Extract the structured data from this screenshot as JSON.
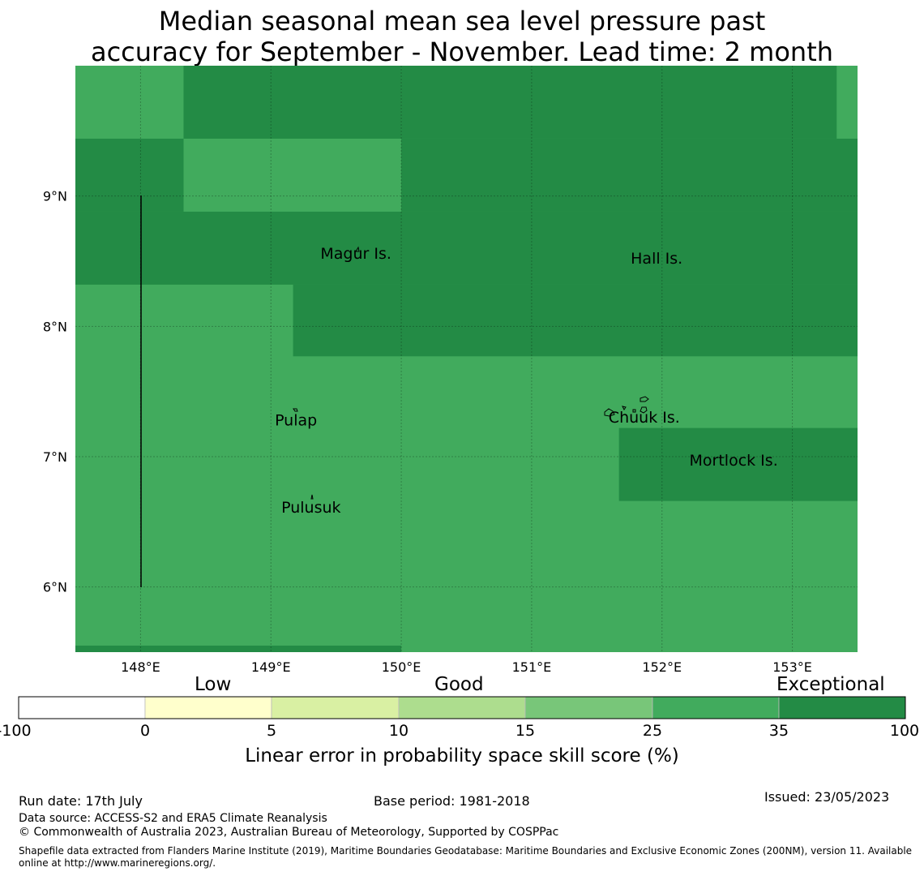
{
  "title": {
    "line1": "Median seasonal mean sea level pressure past",
    "line2": "accuracy for September - November. Lead time: 2 month"
  },
  "map": {
    "lon_range": [
      147.5,
      153.5
    ],
    "lat_range": [
      5.5,
      10.0
    ],
    "lon_ticks": [
      "148°E",
      "149°E",
      "150°E",
      "151°E",
      "152°E",
      "153°E"
    ],
    "lat_ticks": [
      "9°N",
      "8°N",
      "7°N",
      "6°N"
    ],
    "colors": {
      "good": "#41ab5d",
      "exceptional": "#238b45"
    },
    "exceptional_regions": [
      {
        "lon": [
          148.33,
          150.0
        ],
        "lat": [
          9.44,
          10.0
        ]
      },
      {
        "lon": [
          150.0,
          153.34
        ],
        "lat": [
          9.44,
          10.0
        ]
      },
      {
        "lon": [
          147.5,
          148.33
        ],
        "lat": [
          8.88,
          9.44
        ]
      },
      {
        "lon": [
          150.0,
          153.5
        ],
        "lat": [
          8.88,
          9.44
        ]
      },
      {
        "lon": [
          147.5,
          153.5
        ],
        "lat": [
          8.32,
          8.88
        ]
      },
      {
        "lon": [
          149.17,
          153.5
        ],
        "lat": [
          7.77,
          8.32
        ]
      },
      {
        "lon": [
          151.67,
          153.5
        ],
        "lat": [
          6.66,
          7.22
        ]
      },
      {
        "lon": [
          147.5,
          150.0
        ],
        "lat": [
          5.5,
          5.55
        ]
      }
    ],
    "islands": [
      {
        "name": "Magur Is.",
        "lon": 149.38,
        "lat": 8.52
      },
      {
        "name": "Hall Is.",
        "lon": 151.76,
        "lat": 8.48
      },
      {
        "name": "Pulap",
        "lon": 149.03,
        "lat": 7.24
      },
      {
        "name": "Chuuk Is.",
        "lon": 151.59,
        "lat": 7.26
      },
      {
        "name": "Mortlock Is.",
        "lon": 152.21,
        "lat": 6.93
      },
      {
        "name": "Pulusuk",
        "lon": 149.08,
        "lat": 6.57
      }
    ]
  },
  "colorbar": {
    "categories": [
      "Low",
      "Good",
      "Exceptional"
    ],
    "ticks": [
      "-100",
      "0",
      "5",
      "10",
      "15",
      "25",
      "35",
      "100"
    ],
    "colors": [
      "#ffffff",
      "#ffffcc",
      "#d9f0a3",
      "#addd8e",
      "#78c679",
      "#41ab5d",
      "#238b45"
    ],
    "label": "Linear error in probability space skill score (%)"
  },
  "footer": {
    "run_date": "Run date: 17th July",
    "base_period": "Base period: 1981-2018",
    "issued": "Issued: 23/05/2023",
    "data_source": "Data source: ACCESS-S2 and ERA5 Climate Reanalysis",
    "copyright": "© Commonwealth of Australia 2023, Australian Bureau of Meteorology, Supported by COSPPac",
    "shapefile": "Shapefile data extracted from Flanders Marine Institute (2019), Maritime Boundaries Geodatabase: Maritime Boundaries and Exclusive Economic Zones (200NM), version 11. Available online at http://www.marineregions.org/."
  }
}
